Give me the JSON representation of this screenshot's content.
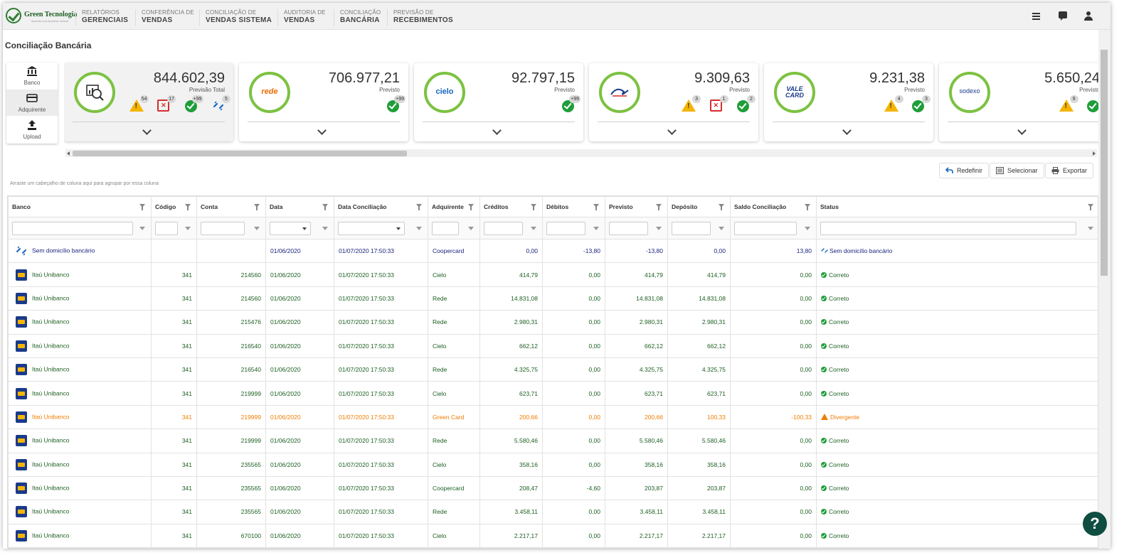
{
  "brand": {
    "name": "Green Tecnologia",
    "tagline": "fazendo sua empresa crescer"
  },
  "nav": [
    {
      "l1": "RELATÓRIOS",
      "l2": "GERENCIAIS"
    },
    {
      "l1": "CONFERÊNCIA DE",
      "l2": "VENDAS"
    },
    {
      "l1": "CONCILIAÇÃO DE",
      "l2": "VENDAS SISTEMA"
    },
    {
      "l1": "AUDITORIA DE",
      "l2": "VENDAS"
    },
    {
      "l1": "CONCILIAÇÃO",
      "l2": "BANCÁRIA"
    },
    {
      "l1": "PREVISÃO DE",
      "l2": "RECEBIMENTOS"
    }
  ],
  "page": {
    "title": "Conciliação Bancária"
  },
  "side": {
    "banco": "Banco",
    "adquirente": "Adquirente",
    "upload": "Upload"
  },
  "cards": [
    {
      "logo": "search-chart-icon",
      "amount": "844.602,39",
      "label": "Previsão Total",
      "warn": "54",
      "error": "17",
      "ok": "+99",
      "link": "5"
    },
    {
      "logo": "rede",
      "amount": "706.977,21",
      "label": "Previsto",
      "ok": "+99"
    },
    {
      "logo": "cielo",
      "amount": "92.797,15",
      "label": "Previsto",
      "ok": "+99"
    },
    {
      "logo": "valecard-swirl",
      "amount": "9.309,63",
      "label": "Previsto",
      "warn": "3",
      "error": "1",
      "ok": "2"
    },
    {
      "logo": "VALE CARD",
      "amount": "9.231,38",
      "label": "Previsto",
      "warn": "4",
      "ok": "3"
    },
    {
      "logo": "sodexo",
      "amount": "5.650,24",
      "label": "Previsto",
      "warn": "9"
    }
  ],
  "toolbar": {
    "redefinir": "Redefinir",
    "selecionar": "Selecionar",
    "exportar": "Exportar"
  },
  "grid": {
    "group_hint": "Arraste um cabeçalho de coluna aqui para agrupar por essa coluna",
    "columns": [
      "Banco",
      "Código",
      "Conta",
      "Data",
      "Data Conciliação",
      "Adquirente",
      "Créditos",
      "Débitos",
      "Previsto",
      "Depósito",
      "Saldo Conciliação",
      "Status"
    ],
    "rows": [
      [
        "Sem domicílio bancário",
        "",
        "",
        "01/06/2020",
        "01/07/2020 17:50:33",
        "Coopercard",
        "0,00",
        "-13,80",
        "-13,80",
        "0,00",
        "13,80",
        "Sem domicílio bancário"
      ],
      [
        "Itaú Unibanco",
        "341",
        "214560",
        "01/06/2020",
        "01/07/2020 17:50:33",
        "Cielo",
        "414,79",
        "0,00",
        "414,79",
        "414,79",
        "0,00",
        "Correto"
      ],
      [
        "Itaú Unibanco",
        "341",
        "214560",
        "01/06/2020",
        "01/07/2020 17:50:33",
        "Rede",
        "14.831,08",
        "0,00",
        "14.831,08",
        "14.831,08",
        "0,00",
        "Correto"
      ],
      [
        "Itaú Unibanco",
        "341",
        "215476",
        "01/06/2020",
        "01/07/2020 17:50:33",
        "Rede",
        "2.980,31",
        "0,00",
        "2.980,31",
        "2.980,31",
        "0,00",
        "Correto"
      ],
      [
        "Itaú Unibanco",
        "341",
        "216540",
        "01/06/2020",
        "01/07/2020 17:50:33",
        "Cielo",
        "662,12",
        "0,00",
        "662,12",
        "662,12",
        "0,00",
        "Correto"
      ],
      [
        "Itaú Unibanco",
        "341",
        "216540",
        "01/06/2020",
        "01/07/2020 17:50:33",
        "Rede",
        "4.325,75",
        "0,00",
        "4.325,75",
        "4.325,75",
        "0,00",
        "Correto"
      ],
      [
        "Itaú Unibanco",
        "341",
        "219999",
        "01/06/2020",
        "01/07/2020 17:50:33",
        "Cielo",
        "623,71",
        "0,00",
        "623,71",
        "623,71",
        "0,00",
        "Correto"
      ],
      [
        "Itaú Unibanco",
        "341",
        "219999",
        "01/06/2020",
        "01/07/2020 17:50:33",
        "Green Card",
        "200,66",
        "0,00",
        "200,66",
        "100,33",
        "-100,33",
        "Divergente"
      ],
      [
        "Itaú Unibanco",
        "341",
        "219999",
        "01/06/2020",
        "01/07/2020 17:50:33",
        "Rede",
        "5.580,46",
        "0,00",
        "5.580,46",
        "5.580,46",
        "0,00",
        "Correto"
      ],
      [
        "Itaú Unibanco",
        "341",
        "235565",
        "01/06/2020",
        "01/07/2020 17:50:33",
        "Cielo",
        "358,16",
        "0,00",
        "358,16",
        "358,16",
        "0,00",
        "Correto"
      ],
      [
        "Itaú Unibanco",
        "341",
        "235565",
        "01/06/2020",
        "01/07/2020 17:50:33",
        "Coopercard",
        "208,47",
        "-4,60",
        "203,87",
        "203,87",
        "0,00",
        "Correto"
      ],
      [
        "Itaú Unibanco",
        "341",
        "235565",
        "01/06/2020",
        "01/07/2020 17:50:33",
        "Rede",
        "3.458,11",
        "0,00",
        "3.458,11",
        "3.458,11",
        "0,00",
        "Correto"
      ],
      [
        "Itaú Unibanco",
        "341",
        "670100",
        "01/06/2020",
        "01/07/2020 17:50:33",
        "Cielo",
        "2.217,17",
        "0,00",
        "2.217,17",
        "2.217,17",
        "0,00",
        "Correto"
      ]
    ]
  },
  "colors": {
    "ok": "#1b5e20",
    "divergent": "#ef7d00",
    "nodomicile": "#1a237e",
    "ring": "#7cc242"
  },
  "help": "?"
}
